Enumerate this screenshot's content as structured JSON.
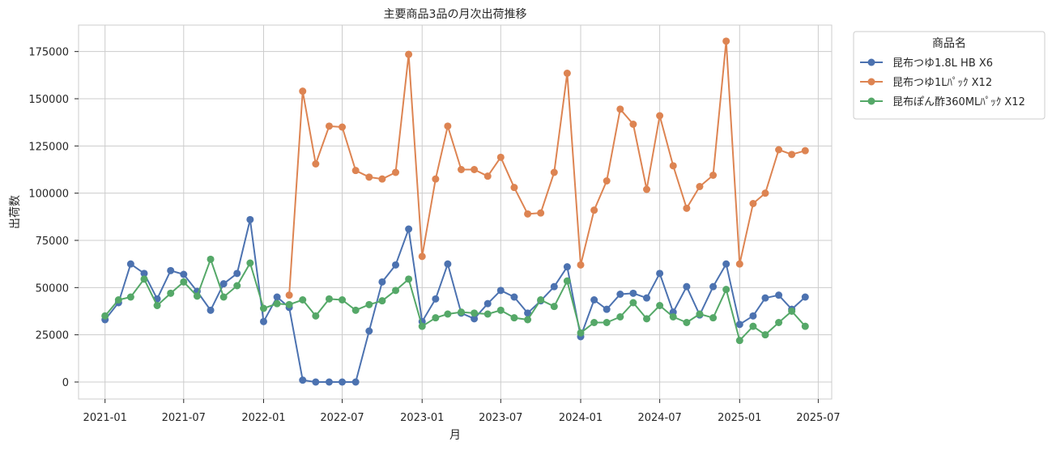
{
  "chart_data": {
    "type": "line",
    "title": "主要商品3品の月次出荷推移",
    "xlabel": "月",
    "ylabel": "出荷数",
    "x_ticks": [
      "2021-01",
      "2021-07",
      "2022-01",
      "2022-07",
      "2023-01",
      "2023-07",
      "2024-01",
      "2024-07",
      "2025-01",
      "2025-07"
    ],
    "y_ticks": [
      0,
      25000,
      50000,
      75000,
      100000,
      125000,
      150000,
      175000
    ],
    "y_tick_labels": [
      "0",
      "25000",
      "50000",
      "75000",
      "100000",
      "125000",
      "150000",
      "175000"
    ],
    "xlim": [
      "2020-11-01",
      "2025-08-01"
    ],
    "ylim": [
      -9000,
      189000
    ],
    "grid": true,
    "legend": {
      "title": "商品名",
      "placement": "outside-top-right"
    },
    "series": [
      {
        "name": "昆布つゆ1.8L HB X6",
        "color": "#4c72b0",
        "x": [
          "2021-01",
          "2021-02",
          "2021-03",
          "2021-04",
          "2021-05",
          "2021-06",
          "2021-07",
          "2021-08",
          "2021-09",
          "2021-10",
          "2021-11",
          "2021-12",
          "2022-01",
          "2022-02",
          "2022-03",
          "2022-04",
          "2022-05",
          "2022-06",
          "2022-07",
          "2022-08",
          "2022-09",
          "2022-10",
          "2022-11",
          "2022-12",
          "2023-01",
          "2023-02",
          "2023-03",
          "2023-04",
          "2023-05",
          "2023-06",
          "2023-07",
          "2023-08",
          "2023-09",
          "2023-10",
          "2023-11",
          "2023-12",
          "2024-01",
          "2024-02",
          "2024-03",
          "2024-04",
          "2024-05",
          "2024-06",
          "2024-07",
          "2024-08",
          "2024-09",
          "2024-10",
          "2024-11",
          "2024-12",
          "2025-01",
          "2025-02",
          "2025-03",
          "2025-04",
          "2025-05",
          "2025-06"
        ],
        "values": [
          33000,
          42000,
          62500,
          57500,
          44000,
          59000,
          57000,
          48000,
          38000,
          52000,
          57500,
          86000,
          32000,
          45000,
          39500,
          1000,
          0,
          0,
          0,
          0,
          27000,
          53000,
          62000,
          81000,
          32000,
          44000,
          62500,
          36500,
          33500,
          41500,
          48500,
          45000,
          36500,
          43000,
          50500,
          61000,
          24000,
          43500,
          38500,
          46500,
          47000,
          44500,
          57500,
          37000,
          50500,
          35500,
          50500,
          62500,
          30500,
          35000,
          44500,
          46000,
          38500,
          45000
        ],
        "show_markers": true
      },
      {
        "name": "昆布つゆ1Lﾊﾟｯｸ X12",
        "color": "#dd8452",
        "x": [
          "2022-03",
          "2022-04",
          "2022-05",
          "2022-06",
          "2022-07",
          "2022-08",
          "2022-09",
          "2022-10",
          "2022-11",
          "2022-12",
          "2023-01",
          "2023-02",
          "2023-03",
          "2023-04",
          "2023-05",
          "2023-06",
          "2023-07",
          "2023-08",
          "2023-09",
          "2023-10",
          "2023-11",
          "2023-12",
          "2024-01",
          "2024-02",
          "2024-03",
          "2024-04",
          "2024-05",
          "2024-06",
          "2024-07",
          "2024-08",
          "2024-09",
          "2024-10",
          "2024-11",
          "2024-12",
          "2025-01",
          "2025-02",
          "2025-03",
          "2025-04",
          "2025-05",
          "2025-06"
        ],
        "values": [
          46000,
          154000,
          115500,
          135500,
          135000,
          112000,
          108500,
          107500,
          111000,
          173500,
          66500,
          107500,
          135500,
          112500,
          112500,
          109000,
          119000,
          103000,
          89000,
          89500,
          111000,
          163500,
          62000,
          91000,
          106500,
          144500,
          136500,
          102000,
          141000,
          114500,
          92000,
          103500,
          109500,
          180500,
          62500,
          94500,
          100000,
          123000,
          120500,
          122500
        ],
        "show_markers": true
      },
      {
        "name": "昆布ぽん酢360MLﾊﾟｯｸ X12",
        "color": "#55a868",
        "x": [
          "2021-01",
          "2021-02",
          "2021-03",
          "2021-04",
          "2021-05",
          "2021-06",
          "2021-07",
          "2021-08",
          "2021-09",
          "2021-10",
          "2021-11",
          "2021-12",
          "2022-01",
          "2022-02",
          "2022-03",
          "2022-04",
          "2022-05",
          "2022-06",
          "2022-07",
          "2022-08",
          "2022-09",
          "2022-10",
          "2022-11",
          "2022-12",
          "2023-01",
          "2023-02",
          "2023-03",
          "2023-04",
          "2023-05",
          "2023-06",
          "2023-07",
          "2023-08",
          "2023-09",
          "2023-10",
          "2023-11",
          "2023-12",
          "2024-01",
          "2024-02",
          "2024-03",
          "2024-04",
          "2024-05",
          "2024-06",
          "2024-07",
          "2024-08",
          "2024-09",
          "2024-10",
          "2024-11",
          "2024-12",
          "2025-01",
          "2025-02",
          "2025-03",
          "2025-04",
          "2025-05",
          "2025-06"
        ],
        "values": [
          35000,
          43500,
          45000,
          54500,
          40500,
          47000,
          53000,
          45500,
          65000,
          45000,
          51000,
          63000,
          39000,
          41500,
          41000,
          43500,
          35000,
          44000,
          43500,
          38000,
          41000,
          43000,
          48500,
          54500,
          29500,
          34000,
          36000,
          37000,
          36500,
          36000,
          38000,
          34000,
          33000,
          43500,
          40000,
          53500,
          26000,
          31500,
          31500,
          34500,
          42000,
          33500,
          40500,
          34500,
          31500,
          36000,
          34000,
          49000,
          22000,
          29500,
          25000,
          31500,
          37500,
          29500
        ],
        "show_markers": true
      }
    ]
  },
  "colors": {
    "background": "#ffffff",
    "grid": "#cccccc",
    "axes_edge": "#cccccc",
    "text": "#262626"
  }
}
